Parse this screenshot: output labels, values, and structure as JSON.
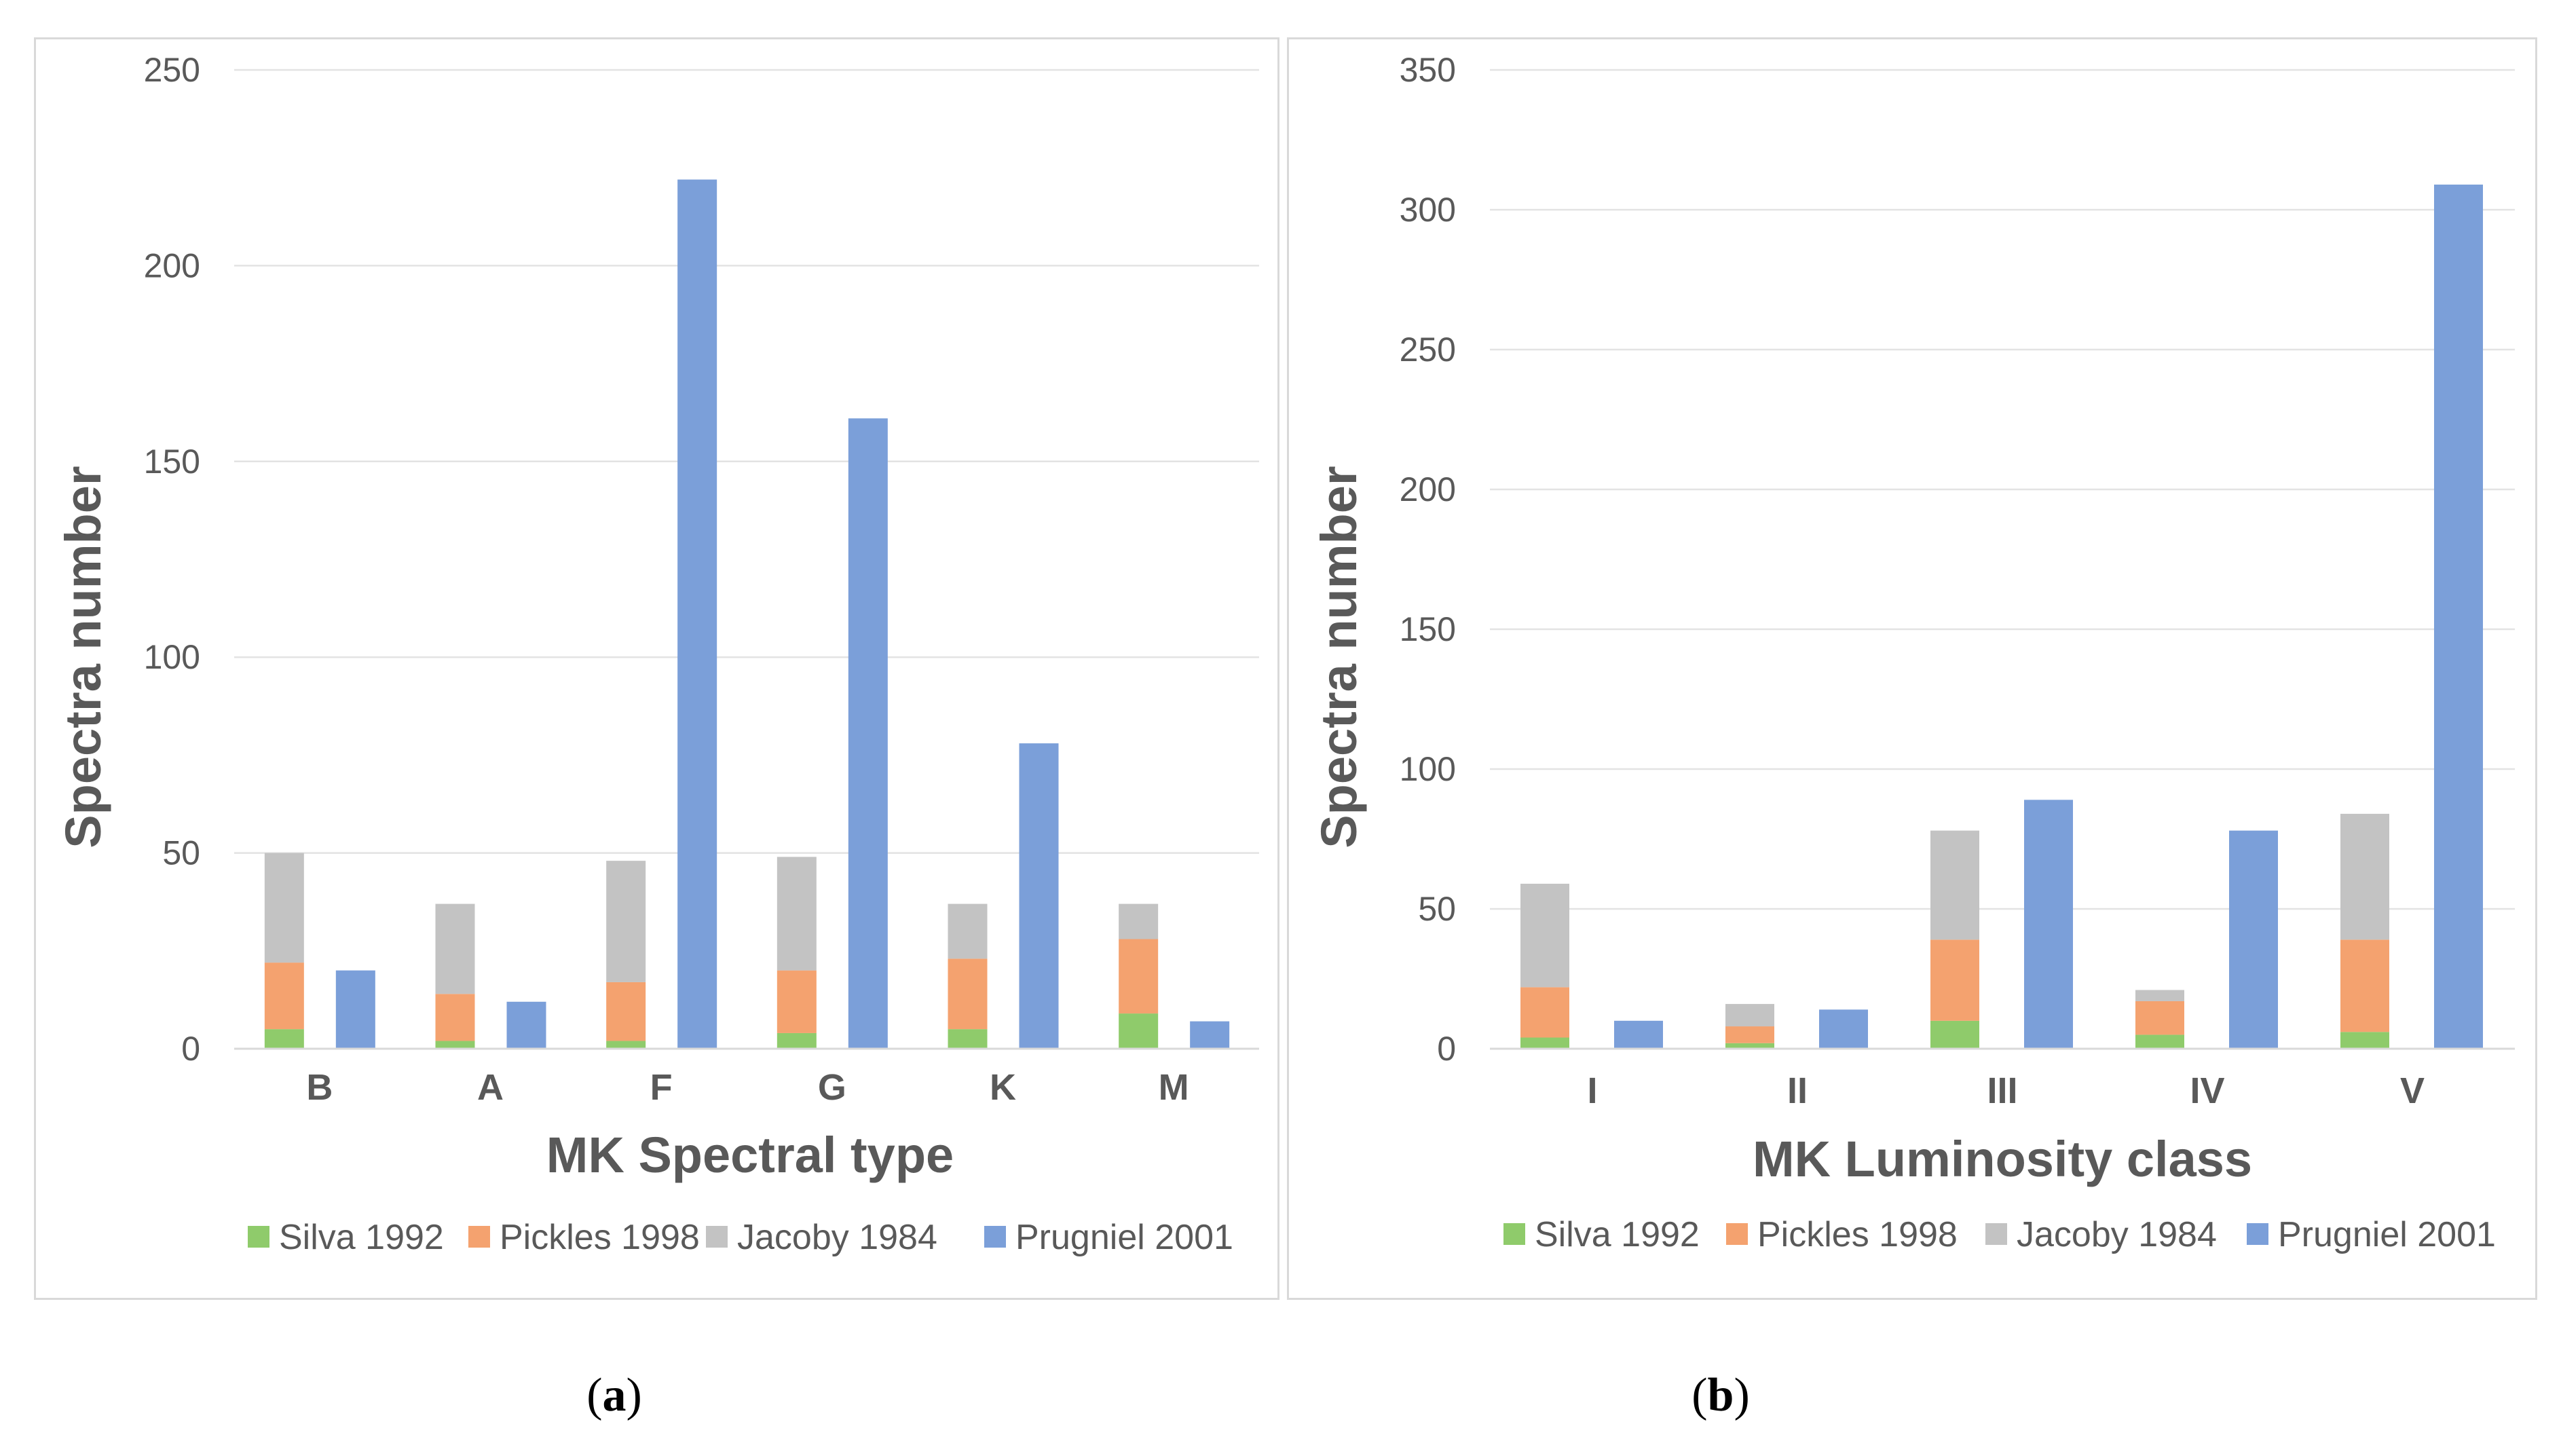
{
  "colors": {
    "silva": "#8fcb6b",
    "pickles": "#f4a26f",
    "jacoby": "#c3c3c3",
    "prugniel": "#7b9fd9",
    "grid": "#e3e3e3",
    "axis": "#d9d9d9"
  },
  "chart_data": [
    {
      "type": "bar",
      "caption_letter": "a",
      "caption_open": "(",
      "caption_close": ")",
      "title": "",
      "xlabel": "MK Spectral type",
      "ylabel": "Spectra number",
      "ylim": [
        0,
        250
      ],
      "yticks": [
        "0",
        "50",
        "100",
        "150",
        "200",
        "250"
      ],
      "categories": [
        "B",
        "A",
        "F",
        "G",
        "K",
        "M"
      ],
      "stacked_series": [
        {
          "name": "Silva 1992",
          "color_key": "silva",
          "values": [
            5,
            2,
            2,
            4,
            5,
            9
          ]
        },
        {
          "name": "Pickles 1998",
          "color_key": "pickles",
          "values": [
            17,
            12,
            15,
            16,
            18,
            19
          ]
        },
        {
          "name": "Jacoby 1984",
          "color_key": "jacoby",
          "values": [
            28,
            23,
            31,
            29,
            14,
            9
          ]
        }
      ],
      "side_series": {
        "name": "Prugniel 2001",
        "color_key": "prugniel",
        "values": [
          20,
          12,
          222,
          161,
          78,
          7
        ]
      },
      "legend": [
        "Silva 1992",
        "Pickles 1998",
        "Jacoby 1984",
        "Prugniel 2001"
      ],
      "legend_position": "bottom"
    },
    {
      "type": "bar",
      "caption_letter": "b",
      "caption_open": "(",
      "caption_close": ")",
      "title": "",
      "xlabel": "MK Luminosity class",
      "ylabel": "Spectra number",
      "ylim": [
        0,
        350
      ],
      "yticks": [
        "0",
        "50",
        "100",
        "150",
        "200",
        "250",
        "300",
        "350"
      ],
      "categories": [
        "I",
        "II",
        "III",
        "IV",
        "V"
      ],
      "stacked_series": [
        {
          "name": "Silva 1992",
          "color_key": "silva",
          "values": [
            4,
            2,
            10,
            5,
            6
          ]
        },
        {
          "name": "Pickles 1998",
          "color_key": "pickles",
          "values": [
            18,
            6,
            29,
            12,
            33
          ]
        },
        {
          "name": "Jacoby 1984",
          "color_key": "jacoby",
          "values": [
            37,
            8,
            39,
            4,
            45
          ]
        }
      ],
      "side_series": {
        "name": "Prugniel 2001",
        "color_key": "prugniel",
        "values": [
          10,
          14,
          89,
          78,
          309
        ]
      },
      "legend": [
        "Silva 1992",
        "Pickles 1998",
        "Jacoby 1984",
        "Prugniel 2001"
      ],
      "legend_position": "bottom"
    }
  ]
}
